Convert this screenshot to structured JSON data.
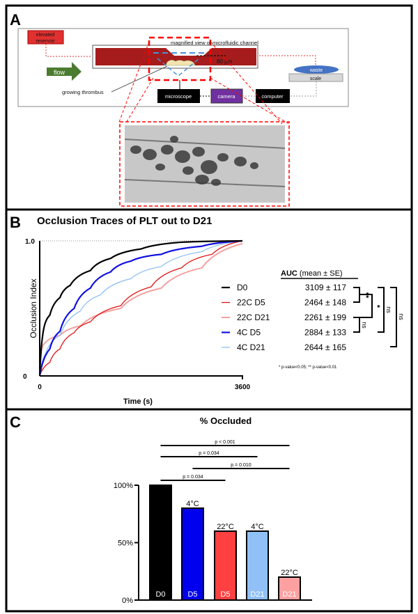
{
  "panelA": {
    "letter": "A",
    "reservoir": "elevated reservoir",
    "reservoir_l1": "elevated",
    "reservoir_l2": "reservoir",
    "flow": "flow",
    "magnified": "magnified view of microfluidic channel",
    "depth": "80 µm",
    "thrombus": "growing thrombus",
    "waste": "waste",
    "scale": "scale",
    "microscope": "microscope",
    "camera": "camera",
    "computer": "computer",
    "colors": {
      "reservoir": "#e03030",
      "channel": "#a61c1c",
      "flow": "#4a7b2e",
      "waste": "#4472c4",
      "camera": "#7030a0",
      "dashed": "#ff0000"
    }
  },
  "chart_data": [
    {
      "type": "line",
      "panel": "B",
      "title": "Occlusion Traces of PLT out to D21",
      "xlabel": "Time (s)",
      "ylabel": "Occlusion Index",
      "xlim": [
        0,
        3600
      ],
      "ylim": [
        0,
        1.0
      ],
      "xticks": [
        "0",
        "3600"
      ],
      "yticks": [
        "0",
        "1.0"
      ],
      "legend_header": "AUC",
      "legend_header_sub": "(mean ± SE)",
      "series": [
        {
          "name": "D0",
          "auc": "3109 ± 117",
          "color": "#000000",
          "width": 2.2,
          "x": [
            0,
            72,
            180,
            360,
            540,
            900,
            1260,
            1800,
            2520,
            3600
          ],
          "y": [
            0,
            0.35,
            0.45,
            0.58,
            0.67,
            0.78,
            0.87,
            0.94,
            0.99,
            1.0
          ]
        },
        {
          "name": "22C D5",
          "auc": "2464 ± 148",
          "color": "#e01010",
          "width": 1.3,
          "x": [
            0,
            180,
            360,
            612,
            900,
            1440,
            1980,
            2520,
            3060,
            3600
          ],
          "y": [
            0,
            0.1,
            0.2,
            0.32,
            0.4,
            0.52,
            0.66,
            0.8,
            0.9,
            1.0
          ]
        },
        {
          "name": "22C D21",
          "auc": "2261 ± 199",
          "color": "#f4a0a0",
          "width": 2,
          "x": [
            0,
            36,
            108,
            360,
            720,
            1440,
            2160,
            2880,
            3600
          ],
          "y": [
            0,
            0.2,
            0.25,
            0.3,
            0.37,
            0.5,
            0.65,
            0.8,
            0.98
          ]
        },
        {
          "name": "4C D5",
          "auc": "2884 ± 133",
          "color": "#1010e0",
          "width": 2.2,
          "x": [
            0,
            180,
            360,
            612,
            900,
            1260,
            1620,
            2160,
            2880,
            3600
          ],
          "y": [
            0,
            0.2,
            0.33,
            0.5,
            0.65,
            0.77,
            0.85,
            0.9,
            0.96,
            1.0
          ]
        },
        {
          "name": "4C D21",
          "auc": "2644 ± 165",
          "color": "#90c0f0",
          "width": 1.3,
          "x": [
            0,
            108,
            360,
            720,
            1080,
            1620,
            2160,
            2880,
            3600
          ],
          "y": [
            0,
            0.17,
            0.3,
            0.48,
            0.6,
            0.72,
            0.81,
            0.92,
            1.0
          ]
        }
      ],
      "significance": [
        {
          "label": "**",
          "pair": [
            "D0",
            "22C D5"
          ]
        },
        {
          "label": "ns",
          "pair": [
            "22C D21",
            "4C D5"
          ]
        },
        {
          "label": "*",
          "pair": [
            "D0/22C D5",
            "22C D21"
          ]
        },
        {
          "label": "ns",
          "pair": [
            "D0",
            "4C D5"
          ]
        },
        {
          "label": "ns",
          "pair": [
            "D0",
            "4C D21"
          ]
        }
      ],
      "footnote": "* p-value<0.05; ** p-value<0.01"
    },
    {
      "type": "bar",
      "panel": "C",
      "title": "% Occluded",
      "ylim": [
        0,
        100
      ],
      "yticks": [
        "0%",
        "50%",
        "100%"
      ],
      "categories": [
        "D0",
        "D5",
        "D5",
        "D21",
        "D21"
      ],
      "top_labels": [
        "",
        "4°C",
        "22°C",
        "4°C",
        "22°C"
      ],
      "values": [
        100,
        80,
        60,
        60,
        20
      ],
      "colors": [
        "#000000",
        "#0000ee",
        "#ff4040",
        "#90c0f5",
        "#ffa0a0"
      ],
      "comparisons": [
        {
          "label": "p < 0.001",
          "from": 0,
          "to": 4
        },
        {
          "label": "p = 0.034",
          "from": 0,
          "to": 3
        },
        {
          "label": "p = 0.010",
          "from": 1,
          "to": 4
        },
        {
          "label": "p = 0.034",
          "from": 0,
          "to": 2
        }
      ]
    }
  ],
  "panelB": {
    "letter": "B"
  },
  "panelC": {
    "letter": "C"
  }
}
